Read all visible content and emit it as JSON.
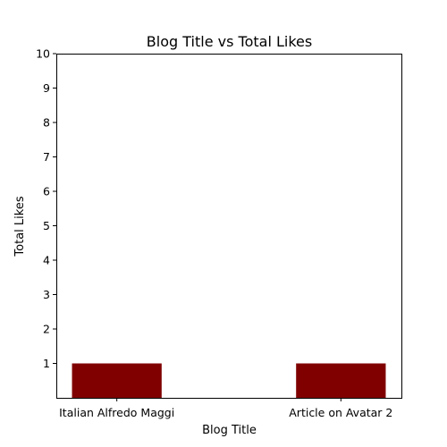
{
  "chart_data": {
    "type": "bar",
    "title": "Blog Title vs Total Likes",
    "xlabel": "Blog Title",
    "ylabel": "Total Likes",
    "categories": [
      "Italian Alfredo Maggi",
      "Article on Avatar 2"
    ],
    "values": [
      1,
      1
    ],
    "ylim": [
      0,
      10
    ],
    "yticks": [
      1,
      2,
      3,
      4,
      5,
      6,
      7,
      8,
      9,
      10
    ],
    "grid": false,
    "bar_color": "#800000"
  }
}
